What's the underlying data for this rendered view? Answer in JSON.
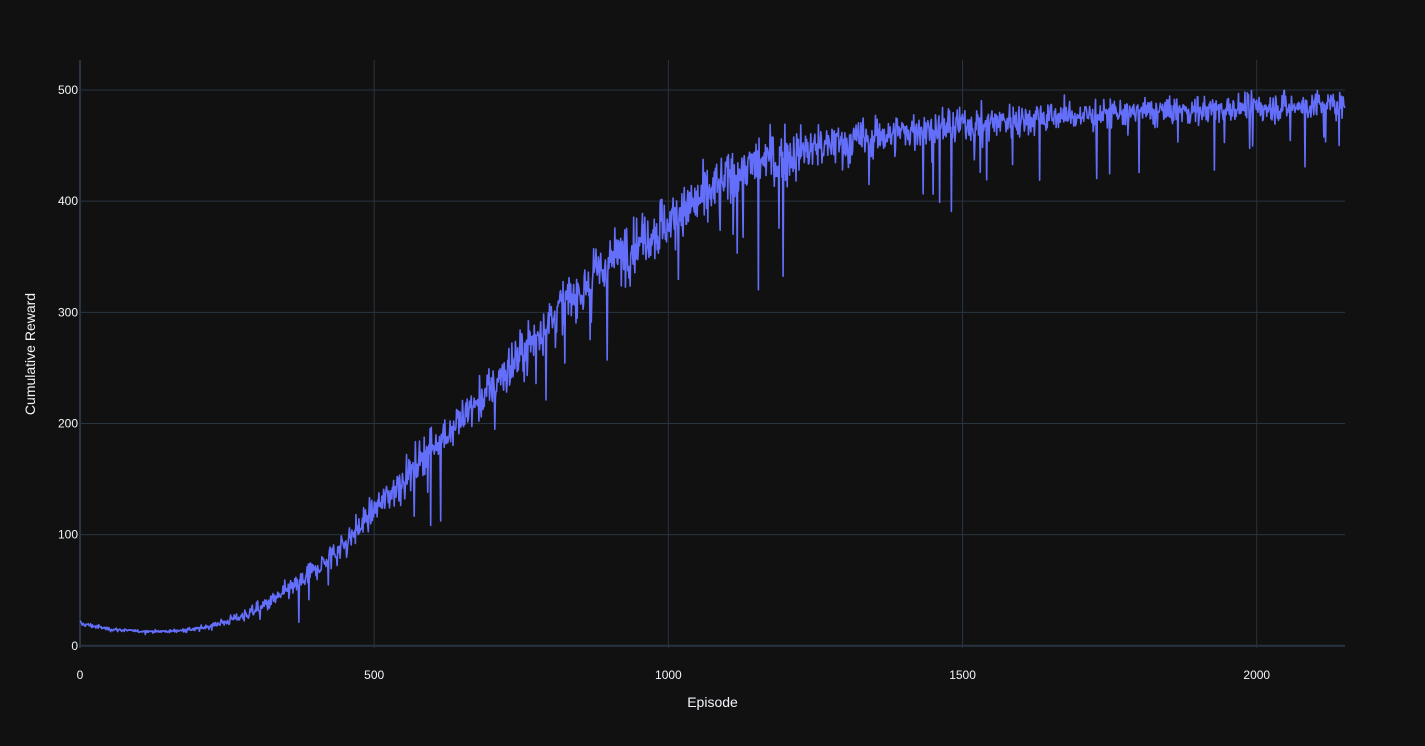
{
  "chart_data": {
    "type": "line",
    "title": "",
    "xlabel": "Episode",
    "ylabel": "Cumulative Reward",
    "xlim": [
      0,
      2150
    ],
    "ylim": [
      -2,
      527
    ],
    "x_ticks": [
      0,
      500,
      1000,
      1500,
      2000
    ],
    "y_ticks": [
      0,
      100,
      200,
      300,
      400,
      500
    ],
    "grid": true,
    "legend": "none",
    "colors": {
      "background": "#111111",
      "grid": "#283442",
      "line": "#636efa",
      "text": "#f2f5fa"
    },
    "series": [
      {
        "x": [
          0,
          50,
          100,
          150,
          200,
          250,
          300,
          350,
          400,
          450,
          500,
          550,
          600,
          650,
          700,
          750,
          800,
          850,
          900,
          950,
          1000,
          1050,
          1100,
          1150,
          1200,
          1250,
          1300,
          1350,
          1400,
          1450,
          1500,
          1550,
          1600,
          1650,
          1700,
          1750,
          1800,
          1850,
          1900,
          1950,
          2000,
          2050,
          2100,
          2150
        ],
        "y": [
          20,
          15,
          13,
          13,
          15,
          22,
          32,
          48,
          68,
          92,
          122,
          150,
          180,
          205,
          232,
          262,
          295,
          320,
          345,
          365,
          380,
          400,
          420,
          435,
          440,
          448,
          452,
          458,
          462,
          466,
          468,
          472,
          474,
          476,
          477,
          478,
          480,
          481,
          482,
          483,
          484,
          485,
          486,
          487
        ],
        "noise": [
          2,
          1.5,
          1,
          1,
          2,
          3,
          5,
          7,
          9,
          11,
          12,
          14,
          16,
          17,
          18,
          19,
          20,
          21,
          22,
          22,
          22,
          21,
          20,
          20,
          19,
          18,
          17,
          16,
          15,
          14,
          14,
          13,
          13,
          12,
          12,
          12,
          11,
          11,
          11,
          11,
          11,
          11,
          11,
          11
        ]
      }
    ]
  }
}
